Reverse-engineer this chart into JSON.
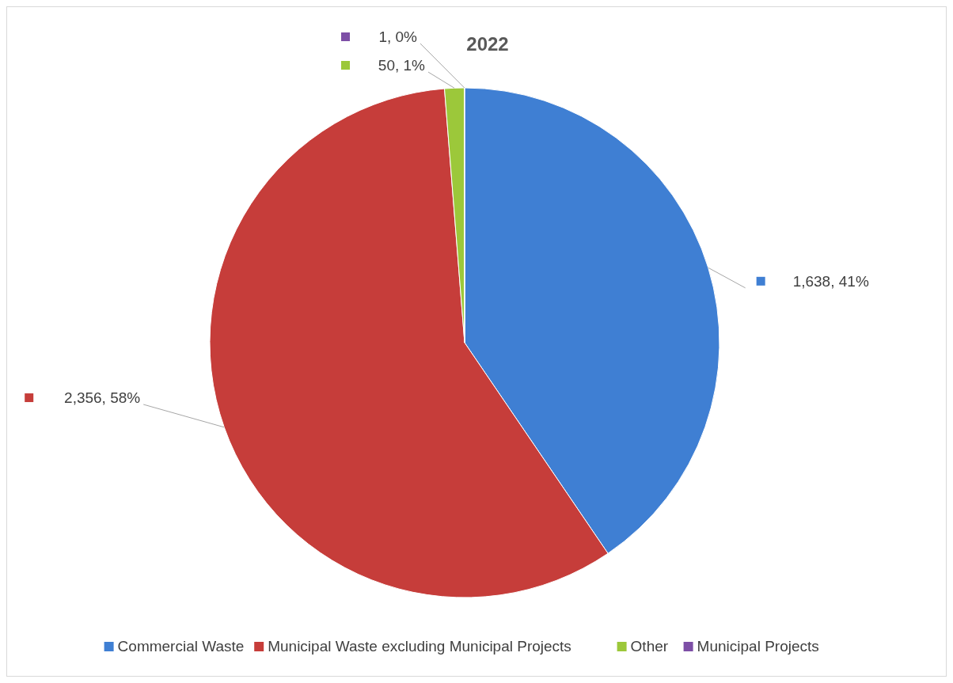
{
  "chart_data": {
    "type": "pie",
    "title": "2022",
    "categories": [
      "Commercial Waste",
      "Municipal Waste excluding Municipal Projects",
      "Other",
      "Municipal Projects"
    ],
    "values": [
      1638,
      2356,
      50,
      1
    ],
    "colors": [
      "#3f7fd3",
      "#c63d3a",
      "#9cc83a",
      "#7d4fa6"
    ],
    "value_labels": [
      "1,638, 41%",
      "2,356, 58%",
      "50, 1%",
      "1, 0%"
    ],
    "legend": "bottom"
  }
}
